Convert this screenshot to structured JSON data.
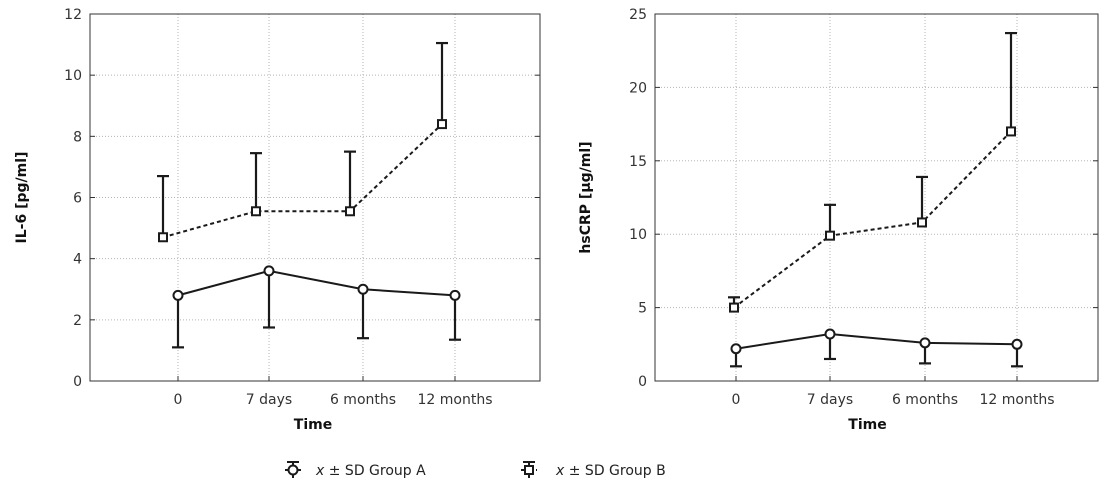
{
  "chart_data": [
    {
      "type": "line",
      "xlabel": "Time",
      "ylabel": "IL-6 [pg/ml]",
      "categories": [
        "0",
        "7 days",
        "6 months",
        "12 months"
      ],
      "ylim": [
        0,
        12
      ],
      "yticks": [
        0,
        2,
        4,
        6,
        8,
        10,
        12
      ],
      "grid": true,
      "series": [
        {
          "name": "Group A",
          "values": [
            2.8,
            3.6,
            3.0,
            2.8
          ],
          "sd": [
            1.7,
            1.85,
            1.6,
            1.45
          ],
          "error_direction": "down",
          "marker": "circle",
          "line": "solid"
        },
        {
          "name": "Group B",
          "values": [
            4.7,
            5.55,
            5.55,
            8.4
          ],
          "sd": [
            2.0,
            1.9,
            1.95,
            2.65
          ],
          "error_direction": "up",
          "marker": "square",
          "line": "dashed"
        }
      ]
    },
    {
      "type": "line",
      "xlabel": "Time",
      "ylabel": "hsCRP [µg/ml]",
      "categories": [
        "0",
        "7 days",
        "6 months",
        "12 months"
      ],
      "ylim": [
        0,
        25
      ],
      "yticks": [
        0,
        5,
        10,
        15,
        20,
        25
      ],
      "grid": true,
      "series": [
        {
          "name": "Group A",
          "values": [
            2.2,
            3.2,
            2.6,
            2.5
          ],
          "sd": [
            1.2,
            1.7,
            1.4,
            1.5
          ],
          "error_direction": "down",
          "marker": "circle",
          "line": "solid"
        },
        {
          "name": "Group B",
          "values": [
            5.0,
            9.9,
            10.8,
            17.0
          ],
          "sd": [
            0.7,
            2.1,
            3.1,
            6.7
          ],
          "error_direction": "up",
          "marker": "square",
          "line": "dashed"
        }
      ]
    }
  ],
  "legend": {
    "placement": "bottom-center",
    "items": [
      {
        "italic": "x",
        "text": " ± SD Group A",
        "marker": "circle",
        "line": "solid"
      },
      {
        "italic": "x",
        "text": " ± SD Group B",
        "marker": "square",
        "line": "dashed"
      }
    ]
  }
}
